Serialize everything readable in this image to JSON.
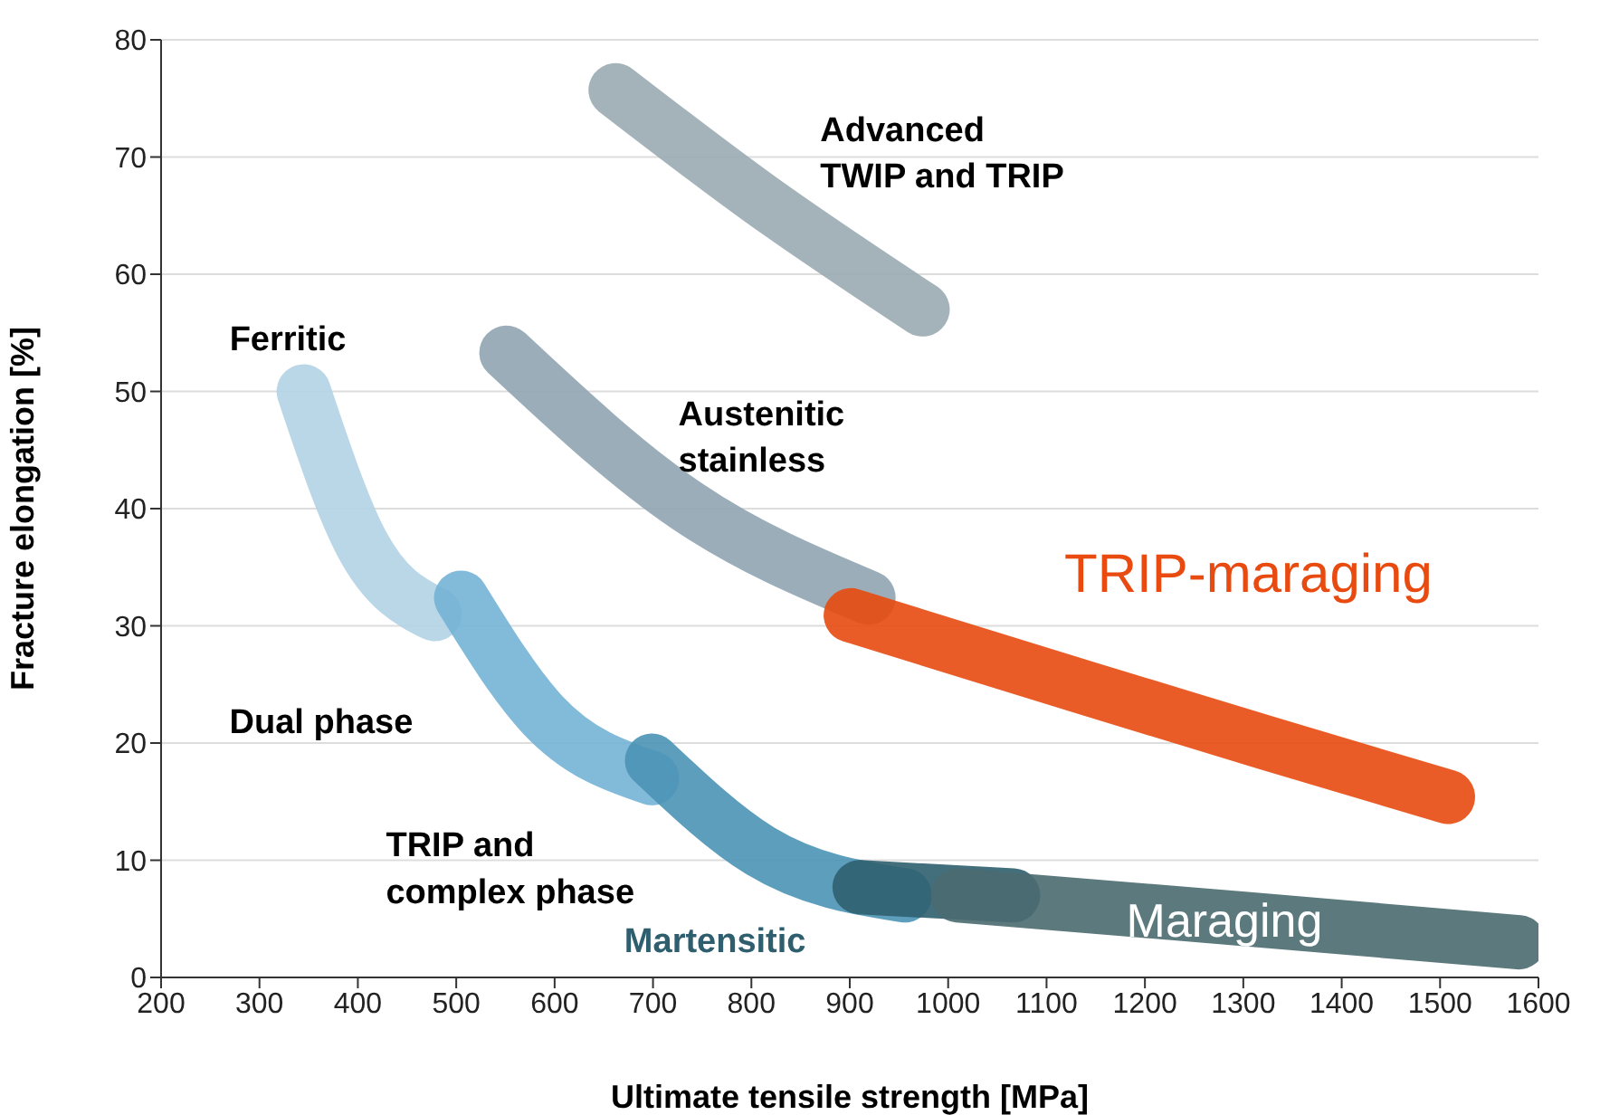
{
  "chart_data": {
    "type": "line",
    "xlabel": "Ultimate tensile strength [MPa]",
    "ylabel": "Fracture elongation [%]",
    "xlim": [
      200,
      1600
    ],
    "xticks": [
      200,
      300,
      400,
      500,
      600,
      700,
      800,
      900,
      1000,
      1100,
      1200,
      1300,
      1400,
      1500,
      1600
    ],
    "ylim": [
      0,
      80
    ],
    "yticks": [
      0,
      10,
      20,
      30,
      40,
      50,
      60,
      70,
      80
    ],
    "grid": "y",
    "marker": "none",
    "line_style": "solid",
    "series": [
      {
        "name": "Advanced TWIP and TRIP",
        "color": "#9aabb3",
        "x": [
          662,
          809,
          974
        ],
        "values": [
          75.7,
          66.4,
          57
        ]
      },
      {
        "name": "Austenitic stainless",
        "color": "#8fa4b0",
        "x": [
          551,
          735,
          919
        ],
        "values": [
          53.3,
          40.2,
          32.4
        ]
      },
      {
        "name": "Ferritic",
        "color": "#b3d3e6",
        "x": [
          345,
          404,
          478
        ],
        "values": [
          50,
          37,
          31
        ]
      },
      {
        "name": "Dual phase",
        "color": "#74b3d5",
        "x": [
          505,
          588,
          699
        ],
        "values": [
          32.4,
          22.4,
          17
        ]
      },
      {
        "name": "TRIP and complex phase",
        "color": "#4b93b6",
        "x": [
          699,
          809,
          956
        ],
        "values": [
          18.5,
          10.8,
          7
        ]
      },
      {
        "name": "Martensitic",
        "color": "#2f5f6f",
        "x": [
          910,
          1066
        ],
        "values": [
          7.7,
          7
        ]
      },
      {
        "name": "TRIP-maraging",
        "color": "#e84a10",
        "x": [
          901,
          1140,
          1324,
          1508
        ],
        "values": [
          30.9,
          24.7,
          20,
          15.4
        ]
      },
      {
        "name": "Maraging",
        "color": "#4a6a70",
        "x": [
          1010,
          1300,
          1580
        ],
        "values": [
          7,
          5,
          3
        ]
      }
    ]
  }
}
